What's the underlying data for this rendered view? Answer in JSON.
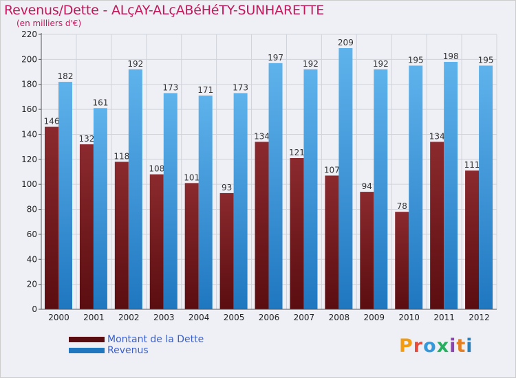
{
  "title": "Revenus/Dette - ALçAY-ALçABéHéTY-SUNHARETTE",
  "subtitle": "(en milliers d'€)",
  "logo": {
    "text": "Proxiti",
    "letters": [
      "P",
      "r",
      "o",
      "x",
      "i",
      "t",
      "i"
    ],
    "colors": [
      "#f39c12",
      "#e74c3c",
      "#3498db",
      "#27ae60",
      "#8e44ad",
      "#e67e22",
      "#2980b9"
    ]
  },
  "colors": {
    "dette_top": "#8b2a2e",
    "dette_bottom": "#5a0d10",
    "revenus_top": "#5fb3ec",
    "revenus_bottom": "#1f77c0",
    "axis_text": "#222222",
    "grid": "#d0d3da"
  },
  "chart_data": {
    "type": "bar",
    "categories": [
      "2000",
      "2001",
      "2002",
      "2003",
      "2004",
      "2005",
      "2006",
      "2007",
      "2008",
      "2009",
      "2010",
      "2011",
      "2012"
    ],
    "series": [
      {
        "name": "Montant de la Dette",
        "values": [
          146,
          132,
          118,
          108,
          101,
          93,
          134,
          121,
          107,
          94,
          78,
          134,
          111
        ]
      },
      {
        "name": "Revenus",
        "values": [
          182,
          161,
          192,
          173,
          171,
          173,
          197,
          192,
          209,
          192,
          195,
          198,
          195
        ]
      }
    ],
    "ylim": [
      0,
      220
    ],
    "yticks": [
      0,
      20,
      40,
      60,
      80,
      100,
      120,
      140,
      160,
      180,
      200,
      220
    ],
    "legend_position": "bottom-left",
    "grid": true
  }
}
